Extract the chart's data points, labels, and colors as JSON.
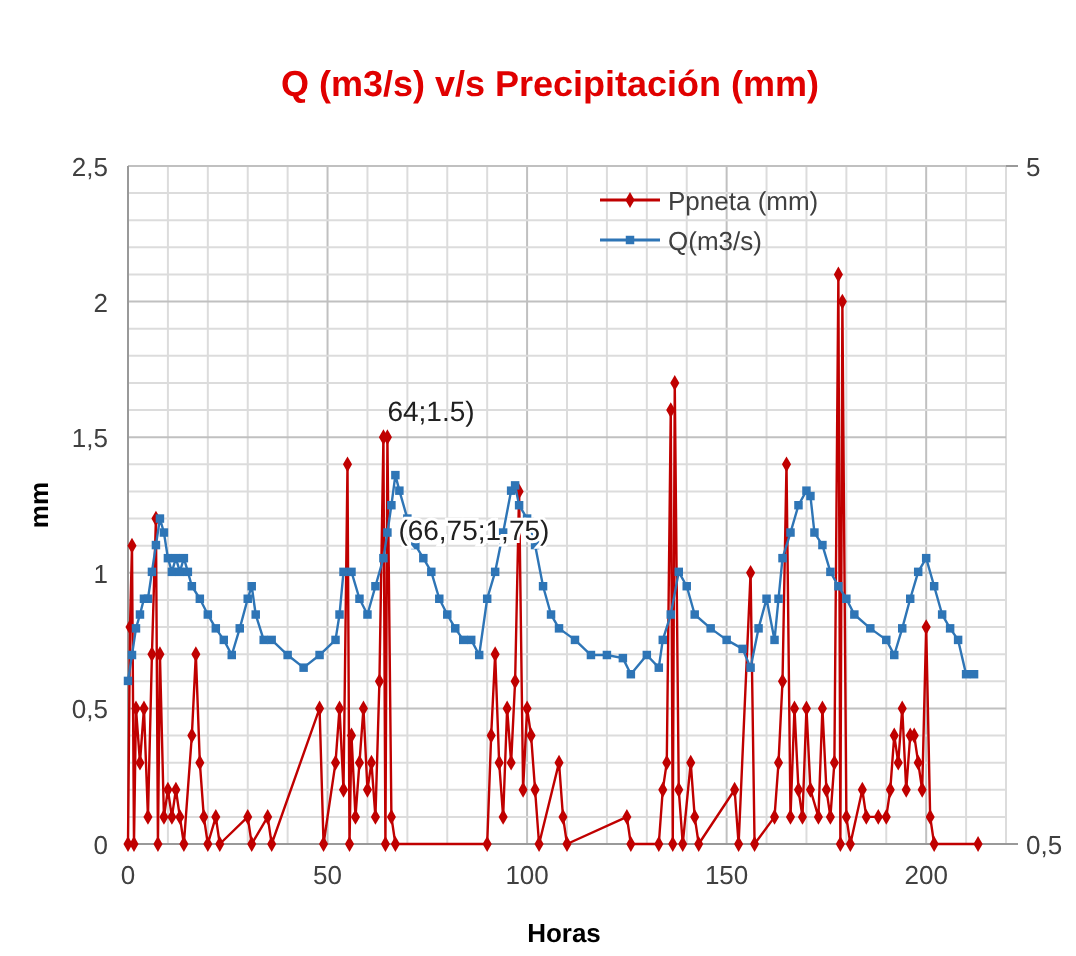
{
  "chart_data": {
    "type": "line",
    "title": "Q (m3/s) v/s Precipitación (mm)",
    "xlabel": "Horas",
    "ylabel": "mm",
    "xlim": [
      0,
      220
    ],
    "xticks": [
      0,
      {
        "value": 10,
        "label": null
      },
      {
        "value": 20,
        "label": null
      },
      {
        "value": 30,
        "label": null
      },
      {
        "value": 40,
        "label": null
      },
      50,
      {
        "value": 60,
        "label": null
      },
      {
        "value": 70,
        "label": null
      },
      {
        "value": 80,
        "label": null
      },
      {
        "value": 90,
        "label": null
      },
      100,
      {
        "value": 110,
        "label": null
      },
      {
        "value": 120,
        "label": null
      },
      {
        "value": 130,
        "label": null
      },
      {
        "value": 140,
        "label": null
      },
      150,
      {
        "value": 160,
        "label": null
      },
      {
        "value": 170,
        "label": null
      },
      {
        "value": 180,
        "label": null
      },
      {
        "value": 190,
        "label": null
      },
      200,
      {
        "value": 210,
        "label": null
      },
      {
        "value": 220,
        "label": null
      }
    ],
    "ylim": [
      0,
      2.5
    ],
    "yticks": [
      0,
      {
        "value": 0.1,
        "label": null
      },
      {
        "value": 0.2,
        "label": null
      },
      {
        "value": 0.3,
        "label": null
      },
      {
        "value": 0.4,
        "label": null
      },
      {
        "value": 0.5,
        "label": "0,5"
      },
      {
        "value": 0.6,
        "label": null
      },
      {
        "value": 0.7,
        "label": null
      },
      {
        "value": 0.8,
        "label": null
      },
      {
        "value": 0.9,
        "label": null
      },
      1,
      {
        "value": 1.1,
        "label": null
      },
      {
        "value": 1.2,
        "label": null
      },
      {
        "value": 1.3,
        "label": null
      },
      {
        "value": 1.4,
        "label": null
      },
      {
        "value": 1.5,
        "label": "1,5"
      },
      {
        "value": 1.6,
        "label": null
      },
      {
        "value": 1.7,
        "label": null
      },
      {
        "value": 1.8,
        "label": null
      },
      {
        "value": 1.9,
        "label": null
      },
      2,
      {
        "value": 2.1,
        "label": null
      },
      {
        "value": 2.2,
        "label": null
      },
      {
        "value": 2.3,
        "label": null
      },
      {
        "value": 2.4,
        "label": null
      },
      {
        "value": 2.5,
        "label": "2,5"
      }
    ],
    "y2lim": [
      0.5,
      5
    ],
    "y2ticks": [
      {
        "value": 0.5,
        "label": "0,5"
      },
      5
    ],
    "log": "y2",
    "grid": true,
    "legend": "top right",
    "annotations": [
      {
        "text": "64;1.5)",
        "x": 64,
        "y": 1.5
      },
      "(66,75;1,75)"
    ],
    "series": [
      {
        "name": "Ppneta (mm)",
        "color": "#c00000",
        "marker": "diamond",
        "x": [
          0,
          0.5,
          1,
          1.5,
          2,
          3,
          4,
          5,
          6,
          7,
          7.5,
          8,
          9,
          10,
          11,
          12,
          13,
          14,
          16,
          17,
          18,
          19,
          20,
          22,
          23,
          30,
          31,
          35,
          36,
          48,
          49,
          52,
          53,
          54,
          55,
          55.5,
          56,
          57,
          58,
          59,
          60,
          61,
          62,
          63,
          64,
          64.5,
          65,
          66,
          67,
          90,
          91,
          92,
          93,
          94,
          95,
          96,
          97,
          98,
          99,
          100,
          101,
          102,
          103,
          108,
          109,
          110,
          125,
          126,
          133,
          134,
          135,
          136,
          136.5,
          137,
          138,
          139,
          141,
          142,
          143,
          152,
          153,
          156,
          157,
          162,
          163,
          164,
          165,
          166,
          167,
          168,
          169,
          170,
          171,
          173,
          174,
          175,
          176,
          177,
          178,
          178.5,
          179,
          180,
          181,
          184,
          185,
          188,
          190,
          191,
          192,
          193,
          194,
          195,
          196,
          197,
          198,
          199,
          200,
          201,
          202,
          213
        ],
        "values": [
          0,
          0.8,
          1.1,
          0,
          0.5,
          0.3,
          0.5,
          0.1,
          0.7,
          1.2,
          0,
          0.7,
          0.1,
          0.2,
          0.1,
          0.2,
          0.1,
          0,
          0.4,
          0.7,
          0.3,
          0.1,
          0,
          0.1,
          0,
          0.1,
          0,
          0.1,
          0,
          0.5,
          0,
          0.3,
          0.5,
          0.2,
          1.4,
          0,
          0.4,
          0.1,
          0.3,
          0.5,
          0.2,
          0.3,
          0.1,
          0.6,
          1.5,
          0,
          1.5,
          0.1,
          0,
          0,
          0.4,
          0.7,
          0.3,
          0.1,
          0.5,
          0.3,
          0.6,
          1.3,
          0.2,
          0.5,
          0.4,
          0.2,
          0,
          0.3,
          0.1,
          0,
          0.1,
          0,
          0,
          0.2,
          0.3,
          1.6,
          0,
          1.7,
          0.2,
          0,
          0.3,
          0.1,
          0,
          0.2,
          0,
          1,
          0,
          0.1,
          0.3,
          0.6,
          1.4,
          0.1,
          0.5,
          0.2,
          0.1,
          0.5,
          0.2,
          0.1,
          0.5,
          0.2,
          0.1,
          0.3,
          2.1,
          0,
          2,
          0.1,
          0,
          0.2,
          0.1,
          0.1,
          0.1,
          0.2,
          0.4,
          0.3,
          0.5,
          0.2,
          0.4,
          0.4,
          0.3,
          0.2,
          0.8,
          0.1,
          0,
          0
        ]
      },
      {
        "name": "Q(m3/s)",
        "color": "#2e75b6",
        "marker": "square",
        "axis": "y2",
        "x": [
          0,
          1,
          2,
          3,
          4,
          5,
          6,
          7,
          8,
          9,
          10,
          11,
          12,
          13,
          14,
          15,
          16,
          18,
          20,
          22,
          24,
          26,
          28,
          30,
          31,
          32,
          34,
          36,
          40,
          44,
          48,
          52,
          53,
          54,
          56,
          58,
          60,
          62,
          64,
          65,
          66,
          67,
          68,
          70,
          72,
          74,
          76,
          78,
          80,
          82,
          84,
          86,
          88,
          90,
          92,
          94,
          96,
          97,
          98,
          100,
          102,
          104,
          106,
          108,
          112,
          116,
          120,
          124,
          126,
          130,
          133,
          134,
          136,
          138,
          140,
          142,
          146,
          150,
          154,
          156,
          158,
          160,
          162,
          163,
          164,
          166,
          168,
          170,
          171,
          172,
          174,
          176,
          178,
          180,
          182,
          186,
          190,
          192,
          194,
          196,
          198,
          200,
          202,
          204,
          206,
          208,
          210,
          212
        ],
        "values": [
          0.87,
          0.95,
          1.04,
          1.09,
          1.15,
          1.15,
          1.26,
          1.38,
          1.51,
          1.44,
          1.32,
          1.26,
          1.32,
          1.26,
          1.32,
          1.26,
          1.2,
          1.15,
          1.09,
          1.04,
          1,
          0.95,
          1.04,
          1.15,
          1.2,
          1.09,
          1,
          1,
          0.95,
          0.91,
          0.95,
          1,
          1.09,
          1.26,
          1.26,
          1.15,
          1.09,
          1.2,
          1.32,
          1.44,
          1.58,
          1.75,
          1.66,
          1.51,
          1.38,
          1.32,
          1.26,
          1.15,
          1.09,
          1.04,
          1,
          1,
          0.95,
          1.15,
          1.26,
          1.44,
          1.66,
          1.69,
          1.58,
          1.51,
          1.38,
          1.2,
          1.09,
          1.04,
          1,
          0.95,
          0.95,
          0.94,
          0.89,
          0.95,
          0.91,
          1,
          1.09,
          1.26,
          1.2,
          1.09,
          1.04,
          1,
          0.97,
          0.91,
          1.04,
          1.15,
          1,
          1.15,
          1.32,
          1.44,
          1.58,
          1.66,
          1.63,
          1.44,
          1.38,
          1.26,
          1.2,
          1.15,
          1.09,
          1.04,
          1,
          0.95,
          1.04,
          1.15,
          1.26,
          1.32,
          1.2,
          1.09,
          1.04,
          1,
          0.89,
          0.89
        ]
      }
    ]
  }
}
